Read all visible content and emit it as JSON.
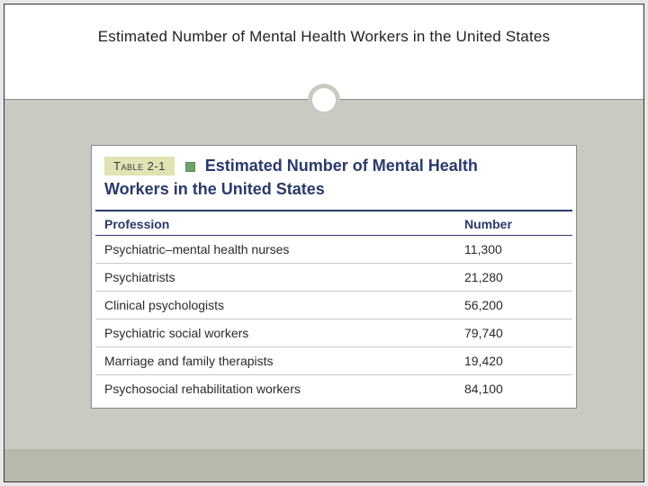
{
  "slide": {
    "title": "Estimated Number of Mental Health Workers in the United States",
    "accent_color": "#c9cac2",
    "header_bg": "#ffffff"
  },
  "table": {
    "type": "table",
    "badge_label": "Table 2-1",
    "badge_bg": "#e1e3b4",
    "square_color": "#6fa06c",
    "title_color": "#2a3a6a",
    "title_line1": "Estimated Number of Mental Health",
    "title_line2": "Workers in the United States",
    "title_fontsize": 18,
    "columns": {
      "profession": "Profession",
      "number": "Number"
    },
    "header_border_color": "#2a3a6a",
    "row_border_color": "#c8c8c8",
    "body_fontsize": 14,
    "rows": [
      {
        "profession": "Psychiatric–mental health nurses",
        "number": "11,300"
      },
      {
        "profession": "Psychiatrists",
        "number": "21,280"
      },
      {
        "profession": "Clinical psychologists",
        "number": "56,200"
      },
      {
        "profession": "Psychiatric social workers",
        "number": "79,740"
      },
      {
        "profession": "Marriage and family therapists",
        "number": "19,420"
      },
      {
        "profession": "Psychosocial rehabilitation workers",
        "number": "84,100"
      }
    ]
  }
}
